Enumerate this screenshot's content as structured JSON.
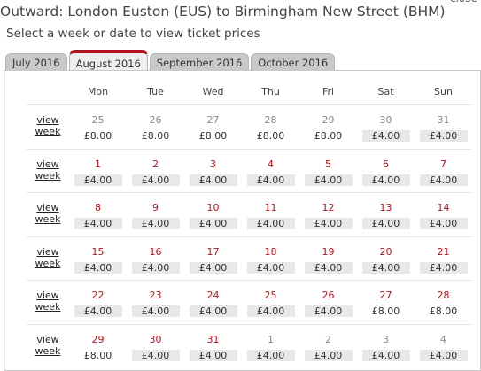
{
  "header": {
    "title": "Outward: London Euston (EUS) to Birmingham New Street (BHM)",
    "close_label": "close",
    "subtitle": "Select a week or date to view ticket prices"
  },
  "tabs": [
    {
      "label": "July 2016",
      "active": false
    },
    {
      "label": "August 2016",
      "active": true
    },
    {
      "label": "September 2016",
      "active": false
    },
    {
      "label": "October 2016",
      "active": false
    }
  ],
  "calendar": {
    "days": [
      "Mon",
      "Tue",
      "Wed",
      "Thu",
      "Fri",
      "Sat",
      "Sun"
    ],
    "view_line1": "view",
    "view_line2": "week",
    "weeks": [
      [
        {
          "date": "25",
          "price": "£8.00",
          "cur": false,
          "cheap": false
        },
        {
          "date": "26",
          "price": "£8.00",
          "cur": false,
          "cheap": false
        },
        {
          "date": "27",
          "price": "£8.00",
          "cur": false,
          "cheap": false
        },
        {
          "date": "28",
          "price": "£8.00",
          "cur": false,
          "cheap": false
        },
        {
          "date": "29",
          "price": "£8.00",
          "cur": false,
          "cheap": false
        },
        {
          "date": "30",
          "price": "£4.00",
          "cur": false,
          "cheap": true
        },
        {
          "date": "31",
          "price": "£4.00",
          "cur": false,
          "cheap": true
        }
      ],
      [
        {
          "date": "1",
          "price": "£4.00",
          "cur": true,
          "cheap": true
        },
        {
          "date": "2",
          "price": "£4.00",
          "cur": true,
          "cheap": true
        },
        {
          "date": "3",
          "price": "£4.00",
          "cur": true,
          "cheap": true
        },
        {
          "date": "4",
          "price": "£4.00",
          "cur": true,
          "cheap": true
        },
        {
          "date": "5",
          "price": "£4.00",
          "cur": true,
          "cheap": true
        },
        {
          "date": "6",
          "price": "£4.00",
          "cur": true,
          "cheap": true
        },
        {
          "date": "7",
          "price": "£4.00",
          "cur": true,
          "cheap": true
        }
      ],
      [
        {
          "date": "8",
          "price": "£4.00",
          "cur": true,
          "cheap": true
        },
        {
          "date": "9",
          "price": "£4.00",
          "cur": true,
          "cheap": true
        },
        {
          "date": "10",
          "price": "£4.00",
          "cur": true,
          "cheap": true
        },
        {
          "date": "11",
          "price": "£4.00",
          "cur": true,
          "cheap": true
        },
        {
          "date": "12",
          "price": "£4.00",
          "cur": true,
          "cheap": true
        },
        {
          "date": "13",
          "price": "£4.00",
          "cur": true,
          "cheap": true
        },
        {
          "date": "14",
          "price": "£4.00",
          "cur": true,
          "cheap": true
        }
      ],
      [
        {
          "date": "15",
          "price": "£4.00",
          "cur": true,
          "cheap": true
        },
        {
          "date": "16",
          "price": "£4.00",
          "cur": true,
          "cheap": true
        },
        {
          "date": "17",
          "price": "£4.00",
          "cur": true,
          "cheap": true
        },
        {
          "date": "18",
          "price": "£4.00",
          "cur": true,
          "cheap": true
        },
        {
          "date": "19",
          "price": "£4.00",
          "cur": true,
          "cheap": true
        },
        {
          "date": "20",
          "price": "£4.00",
          "cur": true,
          "cheap": true
        },
        {
          "date": "21",
          "price": "£4.00",
          "cur": true,
          "cheap": true
        }
      ],
      [
        {
          "date": "22",
          "price": "£4.00",
          "cur": true,
          "cheap": true
        },
        {
          "date": "23",
          "price": "£4.00",
          "cur": true,
          "cheap": true
        },
        {
          "date": "24",
          "price": "£4.00",
          "cur": true,
          "cheap": true
        },
        {
          "date": "25",
          "price": "£4.00",
          "cur": true,
          "cheap": true
        },
        {
          "date": "26",
          "price": "£4.00",
          "cur": true,
          "cheap": true
        },
        {
          "date": "27",
          "price": "£8.00",
          "cur": true,
          "cheap": false
        },
        {
          "date": "28",
          "price": "£8.00",
          "cur": true,
          "cheap": false
        }
      ],
      [
        {
          "date": "29",
          "price": "£8.00",
          "cur": true,
          "cheap": false
        },
        {
          "date": "30",
          "price": "£4.00",
          "cur": true,
          "cheap": true
        },
        {
          "date": "31",
          "price": "£4.00",
          "cur": true,
          "cheap": true
        },
        {
          "date": "1",
          "price": "£4.00",
          "cur": false,
          "cheap": true
        },
        {
          "date": "2",
          "price": "£4.00",
          "cur": false,
          "cheap": true
        },
        {
          "date": "3",
          "price": "£4.00",
          "cur": false,
          "cheap": true
        },
        {
          "date": "4",
          "price": "£4.00",
          "cur": false,
          "cheap": true
        }
      ]
    ]
  },
  "colors": {
    "accent": "#b5121b",
    "tab_inactive": "#c9c9c9",
    "tab_active": "#eeeeee",
    "cheap_price_bg": "#e8e8e8"
  }
}
